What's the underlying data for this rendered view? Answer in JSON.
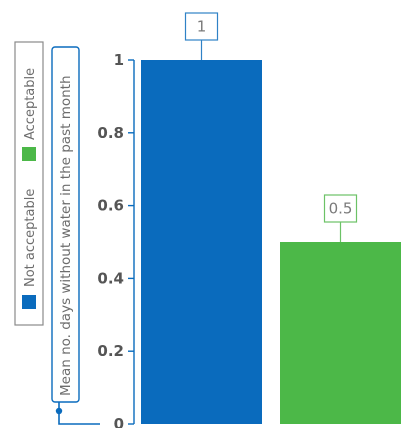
{
  "chart_data": {
    "type": "bar",
    "categories": [
      "Not acceptable",
      "Acceptable"
    ],
    "values": [
      1,
      0.5
    ],
    "data_labels": [
      "1",
      "0.5"
    ],
    "colors": [
      "#0a6bbd",
      "#4cb848"
    ],
    "title": "",
    "xlabel": "",
    "ylabel": "Mean no. days without water in the past month",
    "ylim": [
      0,
      1
    ],
    "yticks": [
      0,
      0.2,
      0.4,
      0.6,
      0.8,
      1
    ],
    "ytick_labels": [
      "0",
      "0.2",
      "0.4",
      "0.6",
      "0.8",
      "1"
    ],
    "grid": false,
    "legend": {
      "placement": "left-vertical",
      "entries": [
        {
          "label": "Not acceptable",
          "color": "#0a6bbd"
        },
        {
          "label": "Acceptable",
          "color": "#4cb848"
        }
      ]
    }
  },
  "colors": {
    "axis": "#0a6bbd",
    "label_box": "#0a6bbd",
    "legend_box": "#8a8a8a",
    "data_label_box_1": "#2f82c6",
    "data_label_box_2": "#6cc266"
  }
}
